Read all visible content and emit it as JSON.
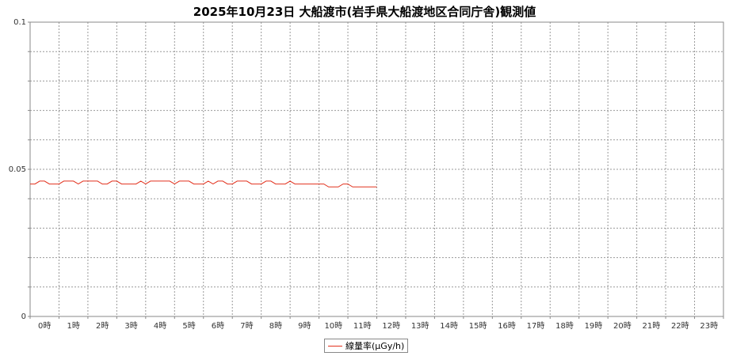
{
  "chart_data": {
    "type": "line",
    "title": "2025年10月23日 大船渡市(岩手県大船渡地区合同庁舎)観測値",
    "xlabel": "",
    "ylabel": "",
    "ylim": [
      0,
      0.1
    ],
    "yticks": [
      "0",
      "0.05",
      "0.1"
    ],
    "ytick_values": [
      0,
      0.05,
      0.1
    ],
    "xlim": [
      0,
      24
    ],
    "categories": [
      "0時",
      "1時",
      "2時",
      "3時",
      "4時",
      "5時",
      "6時",
      "7時",
      "8時",
      "9時",
      "10時",
      "11時",
      "12時",
      "13時",
      "14時",
      "15時",
      "16時",
      "17時",
      "18時",
      "19時",
      "20時",
      "21時",
      "22時",
      "23時"
    ],
    "grid": true,
    "legend_position": "bottom",
    "series": [
      {
        "name": "線量率(μGy/h)",
        "color": "#e2321e",
        "x": [
          0,
          0.167,
          0.333,
          0.5,
          0.667,
          0.833,
          1,
          1.167,
          1.333,
          1.5,
          1.667,
          1.833,
          2,
          2.167,
          2.333,
          2.5,
          2.667,
          2.833,
          3,
          3.167,
          3.333,
          3.5,
          3.667,
          3.833,
          4,
          4.167,
          4.333,
          4.5,
          4.667,
          4.833,
          5,
          5.167,
          5.333,
          5.5,
          5.667,
          5.833,
          6,
          6.167,
          6.333,
          6.5,
          6.667,
          6.833,
          7,
          7.167,
          7.333,
          7.5,
          7.667,
          7.833,
          8,
          8.167,
          8.333,
          8.5,
          8.667,
          8.833,
          9,
          9.167,
          9.333,
          9.5,
          9.667,
          9.833,
          10,
          10.167,
          10.333,
          10.5,
          10.667,
          10.833,
          11,
          11.167,
          11.333,
          11.5,
          11.667,
          11.833,
          12
        ],
        "values": [
          0.045,
          0.045,
          0.046,
          0.046,
          0.045,
          0.045,
          0.045,
          0.046,
          0.046,
          0.046,
          0.045,
          0.046,
          0.046,
          0.046,
          0.046,
          0.045,
          0.045,
          0.046,
          0.046,
          0.045,
          0.045,
          0.045,
          0.045,
          0.046,
          0.045,
          0.046,
          0.046,
          0.046,
          0.046,
          0.046,
          0.045,
          0.046,
          0.046,
          0.046,
          0.045,
          0.045,
          0.045,
          0.046,
          0.045,
          0.046,
          0.046,
          0.045,
          0.045,
          0.046,
          0.046,
          0.046,
          0.045,
          0.045,
          0.045,
          0.046,
          0.046,
          0.045,
          0.045,
          0.045,
          0.046,
          0.045,
          0.045,
          0.045,
          0.045,
          0.045,
          0.045,
          0.045,
          0.044,
          0.044,
          0.044,
          0.045,
          0.045,
          0.044,
          0.044,
          0.044,
          0.044,
          0.044,
          0.044
        ]
      }
    ]
  }
}
